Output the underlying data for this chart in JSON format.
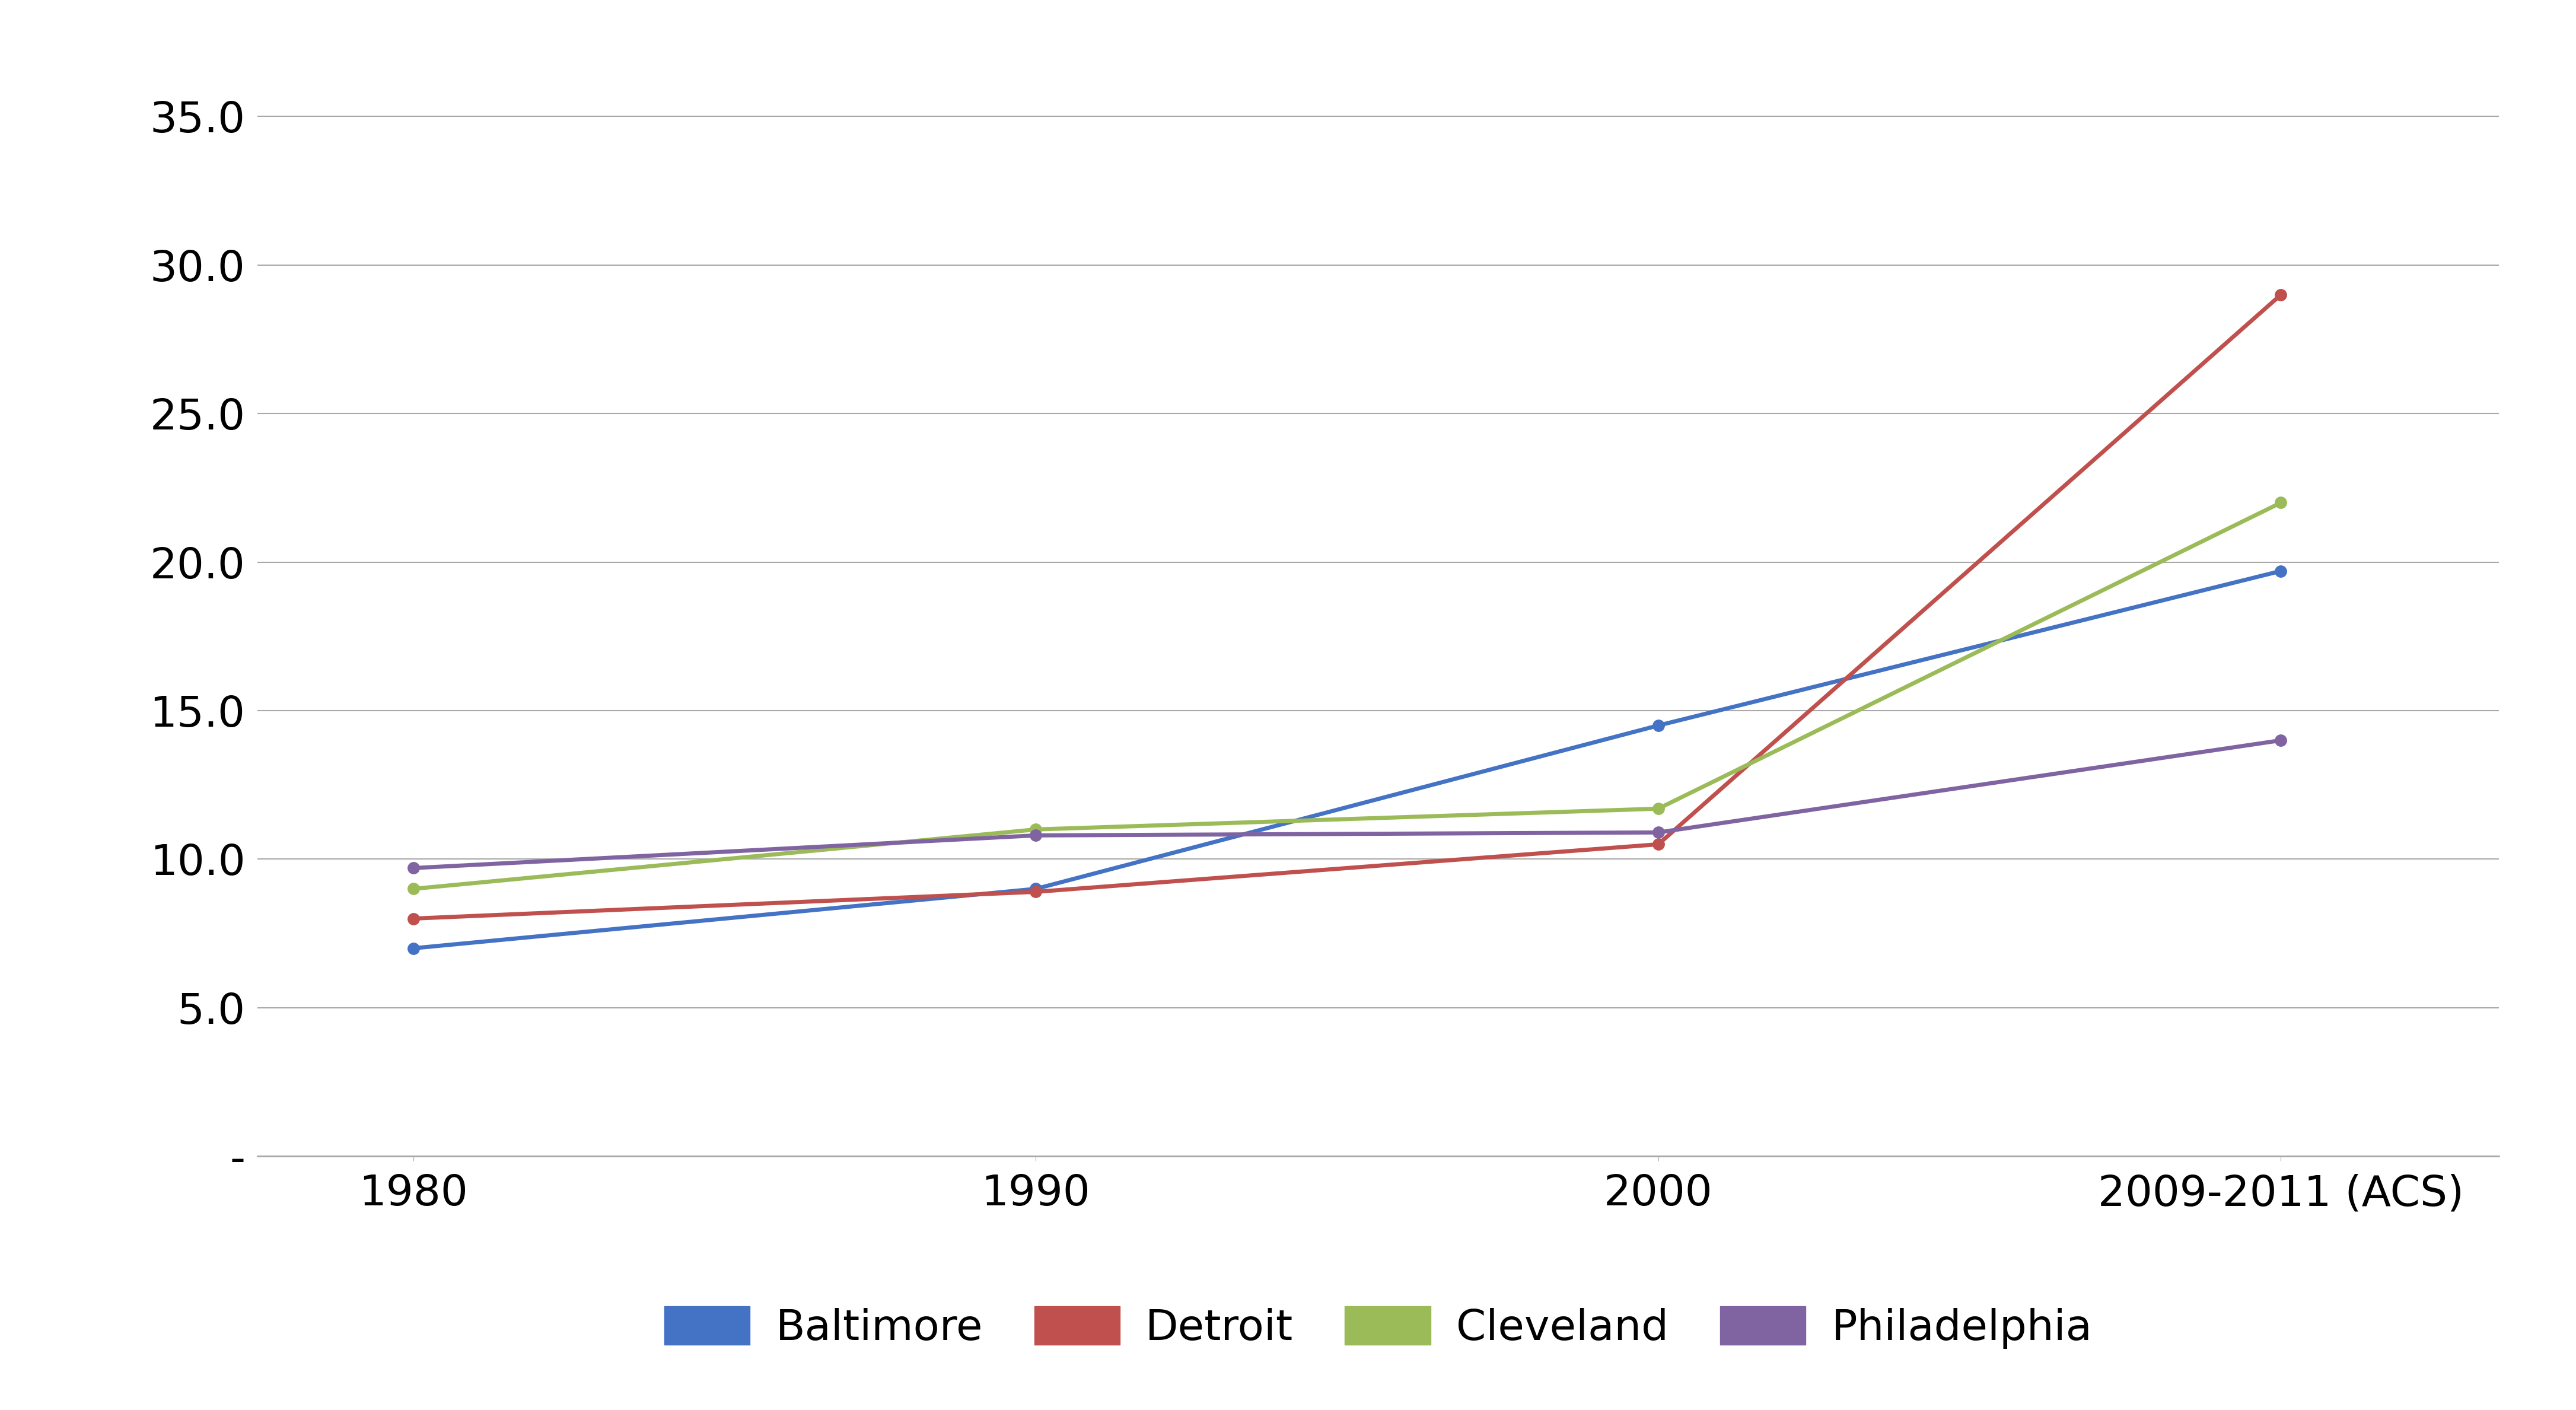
{
  "x_labels": [
    "1980",
    "1990",
    "2000",
    "2009-2011 (ACS)"
  ],
  "x_positions": [
    0,
    1,
    2,
    3
  ],
  "series": {
    "Baltimore": {
      "values": [
        7.0,
        9.0,
        14.5,
        19.7
      ],
      "color": "#4472C4"
    },
    "Detroit": {
      "values": [
        8.0,
        8.9,
        10.5,
        29.0
      ],
      "color": "#C0504D"
    },
    "Cleveland": {
      "values": [
        9.0,
        11.0,
        11.7,
        22.0
      ],
      "color": "#9BBB59"
    },
    "Philadelphia": {
      "values": [
        9.7,
        10.8,
        10.9,
        14.0
      ],
      "color": "#8064A2"
    }
  },
  "series_order": [
    "Baltimore",
    "Detroit",
    "Cleveland",
    "Philadelphia"
  ],
  "ylim": [
    0,
    37.5
  ],
  "yticks": [
    0,
    5.0,
    10.0,
    15.0,
    20.0,
    25.0,
    30.0,
    35.0
  ],
  "ytick_labels": [
    "-",
    "5.0",
    "10.0",
    "15.0",
    "20.0",
    "25.0",
    "30.0",
    "35.0"
  ],
  "background_color": "#FFFFFF",
  "grid_color": "#A9A9A9",
  "line_width": 5.0,
  "marker": "o",
  "marker_size": 14,
  "legend_ncol": 4,
  "tick_font_size": 52,
  "legend_font_size": 52
}
